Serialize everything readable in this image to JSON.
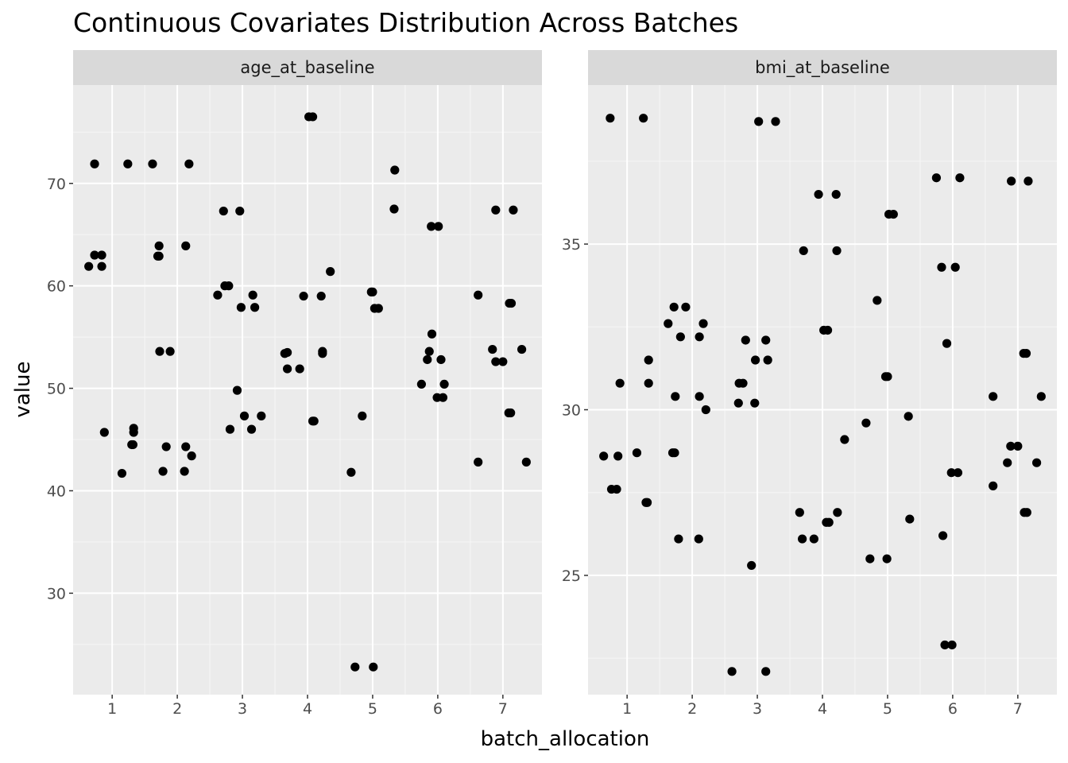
{
  "chart_data": {
    "type": "scatter",
    "title": "Continuous Covariates Distribution Across Batches",
    "xlabel": "batch_allocation",
    "ylabel": "value",
    "grid": true,
    "legend": "none",
    "colors": {
      "panel_background": "#ebebeb",
      "grid_major": "#ffffff",
      "grid_minor": "#f6f6f6",
      "strip_background": "#d9d9d9",
      "point": "#000000",
      "tick_mark": "#333333"
    },
    "panels": [
      {
        "strip": "age_at_baseline",
        "xlim": [
          0.4,
          7.6
        ],
        "ylim": [
          20.1,
          79.6
        ],
        "x_ticks": [
          1,
          2,
          3,
          4,
          5,
          6,
          7
        ],
        "x_tick_labels": [
          "1",
          "2",
          "3",
          "4",
          "5",
          "6",
          "7"
        ],
        "y_ticks": [
          30,
          40,
          50,
          60,
          70
        ],
        "y_tick_labels": [
          "30",
          "40",
          "50",
          "60",
          "70"
        ],
        "points": [
          [
            0.73,
            71.9
          ],
          [
            0.64,
            61.9
          ],
          [
            0.73,
            63.0
          ],
          [
            0.84,
            63.0
          ],
          [
            0.84,
            61.9
          ],
          [
            0.88,
            45.7
          ],
          [
            1.24,
            71.9
          ],
          [
            1.15,
            41.7
          ],
          [
            1.33,
            46.1
          ],
          [
            1.33,
            45.7
          ],
          [
            1.3,
            44.5
          ],
          [
            1.32,
            44.5
          ],
          [
            1.62,
            71.9
          ],
          [
            1.72,
            63.9
          ],
          [
            1.7,
            62.9
          ],
          [
            1.72,
            62.9
          ],
          [
            1.73,
            53.6
          ],
          [
            1.89,
            53.6
          ],
          [
            1.83,
            44.3
          ],
          [
            1.78,
            41.9
          ],
          [
            2.18,
            71.9
          ],
          [
            2.13,
            63.9
          ],
          [
            2.13,
            44.3
          ],
          [
            2.11,
            41.9
          ],
          [
            2.22,
            43.4
          ],
          [
            2.71,
            67.3
          ],
          [
            2.96,
            67.3
          ],
          [
            2.62,
            59.1
          ],
          [
            2.73,
            60.0
          ],
          [
            2.79,
            60.0
          ],
          [
            2.98,
            57.9
          ],
          [
            2.92,
            49.8
          ],
          [
            2.81,
            46.0
          ],
          [
            3.16,
            59.1
          ],
          [
            3.19,
            57.9
          ],
          [
            3.03,
            47.3
          ],
          [
            3.14,
            46.0
          ],
          [
            3.29,
            47.3
          ],
          [
            4.02,
            76.5
          ],
          [
            4.08,
            76.5
          ],
          [
            3.94,
            59.0
          ],
          [
            3.65,
            53.4
          ],
          [
            3.69,
            53.5
          ],
          [
            3.69,
            51.9
          ],
          [
            3.88,
            51.9
          ],
          [
            4.08,
            46.8
          ],
          [
            4.1,
            46.8
          ],
          [
            4.35,
            61.4
          ],
          [
            4.21,
            59.0
          ],
          [
            4.23,
            53.4
          ],
          [
            4.23,
            53.6
          ],
          [
            5.34,
            71.3
          ],
          [
            5.33,
            67.5
          ],
          [
            4.98,
            59.4
          ],
          [
            5.0,
            59.4
          ],
          [
            5.03,
            57.8
          ],
          [
            5.09,
            57.8
          ],
          [
            4.84,
            47.3
          ],
          [
            4.67,
            41.8
          ],
          [
            4.73,
            22.8
          ],
          [
            5.01,
            22.8
          ],
          [
            5.9,
            65.8
          ],
          [
            6.01,
            65.8
          ],
          [
            5.91,
            55.3
          ],
          [
            5.87,
            53.6
          ],
          [
            5.84,
            52.8
          ],
          [
            6.05,
            52.8
          ],
          [
            5.75,
            50.4
          ],
          [
            6.1,
            50.4
          ],
          [
            5.99,
            49.1
          ],
          [
            6.08,
            49.1
          ],
          [
            6.62,
            59.1
          ],
          [
            6.62,
            42.8
          ],
          [
            6.89,
            67.4
          ],
          [
            7.16,
            67.4
          ],
          [
            7.1,
            58.3
          ],
          [
            7.13,
            58.3
          ],
          [
            6.84,
            53.8
          ],
          [
            7.29,
            53.8
          ],
          [
            6.89,
            52.6
          ],
          [
            7.0,
            52.6
          ],
          [
            7.09,
            47.6
          ],
          [
            7.12,
            47.6
          ],
          [
            7.36,
            42.8
          ]
        ]
      },
      {
        "strip": "bmi_at_baseline",
        "xlim": [
          0.4,
          7.6
        ],
        "ylim": [
          21.4,
          39.8
        ],
        "x_ticks": [
          1,
          2,
          3,
          4,
          5,
          6,
          7
        ],
        "x_tick_labels": [
          "1",
          "2",
          "3",
          "4",
          "5",
          "6",
          "7"
        ],
        "y_ticks": [
          25,
          30,
          35
        ],
        "y_tick_labels": [
          "25",
          "30",
          "35"
        ],
        "points": [
          [
            0.74,
            38.8
          ],
          [
            0.64,
            28.6
          ],
          [
            0.86,
            28.6
          ],
          [
            0.89,
            30.8
          ],
          [
            0.76,
            27.6
          ],
          [
            0.84,
            27.6
          ],
          [
            1.25,
            38.8
          ],
          [
            1.33,
            31.5
          ],
          [
            1.33,
            30.8
          ],
          [
            1.15,
            28.7
          ],
          [
            1.29,
            27.2
          ],
          [
            1.31,
            27.2
          ],
          [
            1.72,
            33.1
          ],
          [
            1.9,
            33.1
          ],
          [
            1.63,
            32.6
          ],
          [
            1.82,
            32.2
          ],
          [
            1.74,
            30.4
          ],
          [
            1.7,
            28.7
          ],
          [
            1.73,
            28.7
          ],
          [
            1.79,
            26.1
          ],
          [
            2.17,
            32.6
          ],
          [
            2.11,
            32.2
          ],
          [
            2.11,
            30.4
          ],
          [
            2.21,
            30.0
          ],
          [
            2.1,
            26.1
          ],
          [
            2.61,
            22.1
          ],
          [
            3.02,
            38.7
          ],
          [
            3.28,
            38.7
          ],
          [
            2.82,
            32.1
          ],
          [
            3.13,
            32.1
          ],
          [
            2.97,
            31.5
          ],
          [
            3.16,
            31.5
          ],
          [
            2.72,
            30.8
          ],
          [
            2.78,
            30.8
          ],
          [
            2.71,
            30.2
          ],
          [
            2.96,
            30.2
          ],
          [
            2.91,
            25.3
          ],
          [
            3.13,
            22.1
          ],
          [
            3.71,
            34.8
          ],
          [
            3.94,
            36.5
          ],
          [
            4.21,
            36.5
          ],
          [
            4.22,
            34.8
          ],
          [
            4.02,
            32.4
          ],
          [
            4.08,
            32.4
          ],
          [
            3.65,
            26.9
          ],
          [
            3.69,
            26.1
          ],
          [
            3.87,
            26.1
          ],
          [
            4.06,
            26.6
          ],
          [
            4.1,
            26.6
          ],
          [
            4.23,
            26.9
          ],
          [
            4.34,
            29.1
          ],
          [
            4.67,
            29.6
          ],
          [
            4.73,
            25.5
          ],
          [
            4.99,
            25.5
          ],
          [
            4.84,
            33.3
          ],
          [
            4.97,
            31.0
          ],
          [
            5.0,
            31.0
          ],
          [
            5.02,
            35.9
          ],
          [
            5.09,
            35.9
          ],
          [
            5.32,
            29.8
          ],
          [
            5.34,
            26.7
          ],
          [
            5.75,
            37.0
          ],
          [
            6.11,
            37.0
          ],
          [
            5.83,
            34.3
          ],
          [
            6.04,
            34.3
          ],
          [
            5.91,
            32.0
          ],
          [
            5.85,
            26.2
          ],
          [
            5.88,
            22.9
          ],
          [
            5.99,
            22.9
          ],
          [
            5.98,
            28.1
          ],
          [
            6.08,
            28.1
          ],
          [
            6.62,
            30.4
          ],
          [
            6.62,
            27.7
          ],
          [
            6.9,
            36.9
          ],
          [
            7.16,
            36.9
          ],
          [
            7.09,
            31.7
          ],
          [
            7.13,
            31.7
          ],
          [
            7.36,
            30.4
          ],
          [
            6.89,
            28.9
          ],
          [
            7.0,
            28.9
          ],
          [
            6.84,
            28.4
          ],
          [
            7.29,
            28.4
          ],
          [
            7.1,
            26.9
          ],
          [
            7.14,
            26.9
          ]
        ]
      }
    ]
  }
}
